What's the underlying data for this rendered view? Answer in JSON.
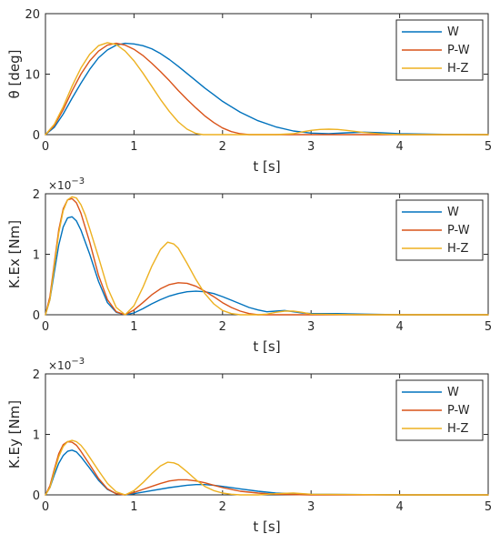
{
  "chart_data": [
    {
      "type": "line",
      "title": "",
      "xlabel": "t [s]",
      "ylabel": "θ [deg]",
      "exponent": "",
      "xlim": [
        0,
        5
      ],
      "ylim": [
        0,
        20
      ],
      "xticks": [
        0,
        1,
        2,
        3,
        4,
        5
      ],
      "yticks": [
        0,
        10,
        20
      ],
      "ytick_labels": [
        "0",
        "10",
        "20"
      ],
      "grid": false,
      "legend_position": "top-right",
      "series": [
        {
          "name": "W",
          "color": "#0072BD",
          "x": [
            0,
            0.1,
            0.2,
            0.3,
            0.4,
            0.5,
            0.6,
            0.7,
            0.8,
            0.9,
            1.0,
            1.1,
            1.2,
            1.3,
            1.4,
            1.5,
            1.6,
            1.7,
            1.8,
            1.9,
            2.0,
            2.2,
            2.4,
            2.6,
            2.8,
            3.0,
            3.2,
            3.4,
            3.6,
            3.8,
            4.0,
            4.5,
            5.0
          ],
          "y": [
            0,
            1.2,
            3.4,
            6.0,
            8.5,
            10.8,
            12.7,
            14.0,
            14.8,
            15.1,
            15.0,
            14.7,
            14.2,
            13.4,
            12.4,
            11.3,
            10.1,
            8.9,
            7.7,
            6.6,
            5.5,
            3.7,
            2.3,
            1.3,
            0.6,
            0.25,
            0.15,
            0.3,
            0.4,
            0.3,
            0.15,
            0.05,
            0
          ]
        },
        {
          "name": "P-W",
          "color": "#D95319",
          "x": [
            0,
            0.1,
            0.2,
            0.3,
            0.4,
            0.5,
            0.6,
            0.7,
            0.8,
            0.9,
            1.0,
            1.1,
            1.2,
            1.3,
            1.4,
            1.5,
            1.6,
            1.7,
            1.8,
            1.9,
            2.0,
            2.1,
            2.2,
            2.3,
            2.4,
            2.6,
            3.0,
            3.5,
            4.0,
            5.0
          ],
          "y": [
            0,
            1.5,
            4.1,
            7.2,
            10.0,
            12.2,
            13.8,
            14.8,
            15.1,
            14.8,
            14.1,
            13.1,
            11.8,
            10.4,
            8.9,
            7.3,
            5.8,
            4.4,
            3.1,
            2.0,
            1.1,
            0.5,
            0.15,
            0,
            0,
            0,
            0,
            0,
            0,
            0
          ]
        },
        {
          "name": "H-Z",
          "color": "#EDB120",
          "x": [
            0,
            0.1,
            0.2,
            0.3,
            0.4,
            0.5,
            0.6,
            0.7,
            0.8,
            0.9,
            1.0,
            1.1,
            1.2,
            1.3,
            1.4,
            1.5,
            1.6,
            1.7,
            1.78,
            1.9,
            2.2,
            2.6,
            2.8,
            2.9,
            3.0,
            3.1,
            3.2,
            3.3,
            3.4,
            3.6,
            3.8,
            4.0,
            4.5,
            5.0
          ],
          "y": [
            0,
            1.7,
            4.6,
            8.0,
            11.0,
            13.3,
            14.7,
            15.2,
            14.9,
            13.8,
            12.2,
            10.2,
            8.0,
            5.8,
            3.8,
            2.1,
            0.9,
            0.2,
            0,
            0,
            0,
            0,
            0.15,
            0.45,
            0.7,
            0.85,
            0.9,
            0.85,
            0.7,
            0.35,
            0.1,
            0,
            0,
            0
          ]
        }
      ]
    },
    {
      "type": "line",
      "title": "",
      "xlabel": "t [s]",
      "ylabel": "K.Ex [Nm]",
      "exponent": "×10",
      "exponent_power": "−3",
      "xlim": [
        0,
        5
      ],
      "ylim": [
        0,
        2
      ],
      "xticks": [
        0,
        1,
        2,
        3,
        4,
        5
      ],
      "yticks": [
        0,
        1,
        2
      ],
      "ytick_labels": [
        "0",
        "1",
        "2"
      ],
      "grid": false,
      "legend_position": "top-right",
      "series": [
        {
          "name": "W",
          "color": "#0072BD",
          "x": [
            0,
            0.05,
            0.1,
            0.15,
            0.2,
            0.25,
            0.3,
            0.35,
            0.4,
            0.5,
            0.6,
            0.7,
            0.8,
            0.9,
            1.0,
            1.1,
            1.2,
            1.3,
            1.4,
            1.5,
            1.6,
            1.7,
            1.8,
            1.9,
            2.0,
            2.1,
            2.2,
            2.3,
            2.4,
            2.5,
            2.6,
            2.7,
            2.8,
            2.9,
            3.0,
            3.3,
            3.6,
            4.0,
            5.0
          ],
          "y": [
            0,
            0.25,
            0.7,
            1.15,
            1.45,
            1.6,
            1.62,
            1.55,
            1.4,
            1.0,
            0.55,
            0.2,
            0.04,
            0.0,
            0.03,
            0.1,
            0.18,
            0.25,
            0.31,
            0.35,
            0.38,
            0.39,
            0.38,
            0.35,
            0.3,
            0.24,
            0.18,
            0.12,
            0.08,
            0.05,
            0.06,
            0.07,
            0.05,
            0.03,
            0.02,
            0.02,
            0.01,
            0.0,
            0.0
          ]
        },
        {
          "name": "P-W",
          "color": "#D95319",
          "x": [
            0,
            0.05,
            0.1,
            0.15,
            0.2,
            0.25,
            0.3,
            0.35,
            0.4,
            0.5,
            0.6,
            0.7,
            0.8,
            0.9,
            1.0,
            1.1,
            1.2,
            1.3,
            1.4,
            1.5,
            1.6,
            1.7,
            1.8,
            1.9,
            2.0,
            2.1,
            2.2,
            2.3,
            2.4,
            2.5,
            3.0,
            4.0,
            5.0
          ],
          "y": [
            0,
            0.3,
            0.85,
            1.4,
            1.75,
            1.9,
            1.92,
            1.85,
            1.68,
            1.2,
            0.65,
            0.25,
            0.05,
            0.0,
            0.08,
            0.2,
            0.33,
            0.43,
            0.5,
            0.53,
            0.52,
            0.47,
            0.39,
            0.3,
            0.2,
            0.12,
            0.06,
            0.02,
            0.0,
            0.0,
            0.0,
            0.0,
            0.0
          ]
        },
        {
          "name": "H-Z",
          "color": "#EDB120",
          "x": [
            0,
            0.05,
            0.1,
            0.15,
            0.2,
            0.25,
            0.3,
            0.35,
            0.4,
            0.45,
            0.5,
            0.6,
            0.7,
            0.8,
            0.9,
            1.0,
            1.1,
            1.2,
            1.3,
            1.38,
            1.45,
            1.5,
            1.6,
            1.7,
            1.8,
            1.9,
            2.0,
            2.1,
            2.2,
            2.3,
            2.4,
            2.5,
            2.6,
            2.7,
            2.8,
            2.9,
            3.0,
            3.5,
            4.0,
            5.0
          ],
          "y": [
            0,
            0.25,
            0.8,
            1.35,
            1.72,
            1.9,
            1.95,
            1.93,
            1.82,
            1.65,
            1.42,
            0.95,
            0.45,
            0.12,
            0.0,
            0.15,
            0.45,
            0.8,
            1.08,
            1.2,
            1.17,
            1.1,
            0.85,
            0.58,
            0.35,
            0.18,
            0.07,
            0.02,
            0.0,
            0.0,
            0.0,
            0.01,
            0.04,
            0.06,
            0.06,
            0.04,
            0.01,
            0.0,
            0.0,
            0.0
          ]
        }
      ]
    },
    {
      "type": "line",
      "title": "",
      "xlabel": "t [s]",
      "ylabel": "K.Ey [Nm]",
      "exponent": "×10",
      "exponent_power": "−3",
      "xlim": [
        0,
        5
      ],
      "ylim": [
        0,
        2
      ],
      "xticks": [
        0,
        1,
        2,
        3,
        4,
        5
      ],
      "yticks": [
        0,
        1,
        2
      ],
      "ytick_labels": [
        "0",
        "1",
        "2"
      ],
      "grid": false,
      "legend_position": "top-right",
      "series": [
        {
          "name": "W",
          "color": "#0072BD",
          "x": [
            0,
            0.05,
            0.1,
            0.15,
            0.2,
            0.25,
            0.3,
            0.35,
            0.4,
            0.5,
            0.6,
            0.7,
            0.8,
            0.9,
            1.0,
            1.2,
            1.4,
            1.6,
            1.7,
            1.8,
            1.9,
            2.0,
            2.2,
            2.4,
            2.6,
            2.8,
            3.0,
            4.0,
            5.0
          ],
          "y": [
            0,
            0.12,
            0.33,
            0.52,
            0.65,
            0.72,
            0.74,
            0.71,
            0.63,
            0.44,
            0.24,
            0.09,
            0.02,
            0.0,
            0.02,
            0.07,
            0.12,
            0.16,
            0.17,
            0.17,
            0.16,
            0.14,
            0.1,
            0.06,
            0.03,
            0.02,
            0.01,
            0.0,
            0.0
          ]
        },
        {
          "name": "P-W",
          "color": "#D95319",
          "x": [
            0,
            0.05,
            0.1,
            0.15,
            0.2,
            0.25,
            0.3,
            0.35,
            0.4,
            0.5,
            0.6,
            0.7,
            0.8,
            0.9,
            1.0,
            1.1,
            1.2,
            1.3,
            1.4,
            1.5,
            1.6,
            1.7,
            1.8,
            1.9,
            2.0,
            2.2,
            2.4,
            2.6,
            3.0,
            4.0,
            5.0
          ],
          "y": [
            0,
            0.15,
            0.42,
            0.68,
            0.83,
            0.88,
            0.87,
            0.82,
            0.72,
            0.5,
            0.27,
            0.1,
            0.02,
            0.0,
            0.04,
            0.09,
            0.14,
            0.19,
            0.23,
            0.25,
            0.25,
            0.23,
            0.2,
            0.16,
            0.12,
            0.06,
            0.03,
            0.01,
            0.0,
            0.0,
            0.0
          ]
        },
        {
          "name": "H-Z",
          "color": "#EDB120",
          "x": [
            0,
            0.05,
            0.1,
            0.15,
            0.2,
            0.25,
            0.3,
            0.35,
            0.4,
            0.45,
            0.5,
            0.6,
            0.7,
            0.8,
            0.9,
            1.0,
            1.1,
            1.2,
            1.3,
            1.38,
            1.45,
            1.5,
            1.6,
            1.7,
            1.8,
            1.9,
            2.0,
            2.1,
            2.2,
            2.4,
            2.6,
            2.8,
            3.0,
            4.0,
            5.0
          ],
          "y": [
            0,
            0.12,
            0.38,
            0.63,
            0.8,
            0.88,
            0.9,
            0.88,
            0.82,
            0.73,
            0.62,
            0.4,
            0.19,
            0.05,
            0.0,
            0.07,
            0.2,
            0.35,
            0.48,
            0.54,
            0.53,
            0.5,
            0.38,
            0.25,
            0.14,
            0.07,
            0.03,
            0.01,
            0.0,
            0.0,
            0.02,
            0.03,
            0.01,
            0.0,
            0.0
          ]
        }
      ]
    }
  ]
}
